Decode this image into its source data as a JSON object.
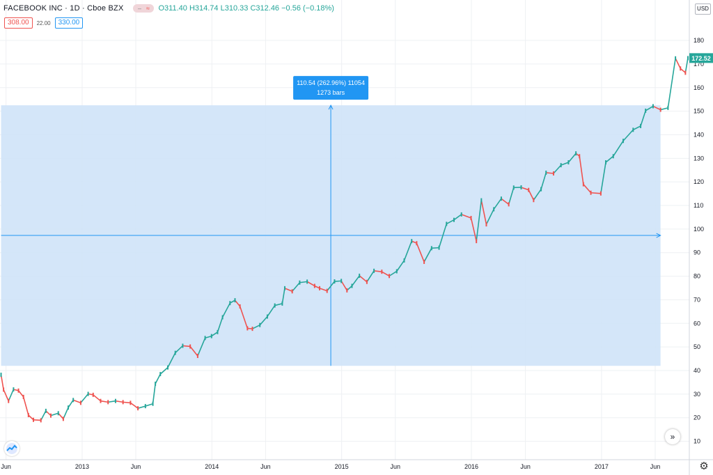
{
  "legend": {
    "symbol_line": "FACEBOOK INC · 1D · Cboe BZX",
    "open_label": "O",
    "open": "311.40",
    "high_label": "H",
    "high": "314.74",
    "low_label": "L",
    "low": "310.33",
    "close_label": "C",
    "close": "312.46",
    "change": "−0.56 (−0.18%)"
  },
  "quote": {
    "bid": "308.00",
    "spread": "22.00",
    "ask": "330.00"
  },
  "price_scale": {
    "currency": "USD",
    "last_price": "172.52"
  },
  "icons": {
    "logo": "tradingview-logo-icon",
    "scroll": "scroll-to-realtime-icon",
    "settings": "gear-icon"
  },
  "colors": {
    "up": "#26a69a",
    "down": "#ef5350",
    "range": "#2196f3",
    "range_fill": "#cfe3f8",
    "last_price": "#26a69a"
  },
  "measure": {
    "line1": "110.54 (262.96%) 11054",
    "line2": "1273 bars"
  },
  "chart_data": {
    "type": "line",
    "x_ticks": [
      "Jun",
      "2013",
      "Jun",
      "2014",
      "Jun",
      "2015",
      "Jun",
      "2016",
      "Jun",
      "2017",
      "Jun"
    ],
    "x_tick_dates": [
      "2012-06-01",
      "2013-01-01",
      "2013-06-01",
      "2014-01-01",
      "2014-06-01",
      "2015-01-01",
      "2015-06-01",
      "2016-01-01",
      "2016-06-01",
      "2017-01-01",
      "2017-06-01"
    ],
    "y_ticks": [
      10,
      20,
      30,
      40,
      50,
      60,
      70,
      80,
      90,
      100,
      110,
      120,
      130,
      140,
      150,
      160,
      170,
      180
    ],
    "ylim": [
      5,
      183
    ],
    "xlim": [
      "2012-05-15",
      "2017-09-05"
    ],
    "grid": true,
    "series": [
      {
        "values": [
          [
            "2012-05-18",
            38.2
          ],
          [
            "2012-05-25",
            31.9
          ],
          [
            "2012-06-08",
            27.1
          ],
          [
            "2012-06-22",
            32.0
          ],
          [
            "2012-07-06",
            31.5
          ],
          [
            "2012-07-20",
            28.8
          ],
          [
            "2012-08-03",
            21.1
          ],
          [
            "2012-08-17",
            19.1
          ],
          [
            "2012-09-07",
            18.9
          ],
          [
            "2012-09-21",
            22.9
          ],
          [
            "2012-10-05",
            20.9
          ],
          [
            "2012-10-26",
            21.9
          ],
          [
            "2012-11-09",
            19.5
          ],
          [
            "2012-11-23",
            24.3
          ],
          [
            "2012-12-07",
            27.5
          ],
          [
            "2012-12-28",
            26.3
          ],
          [
            "2013-01-18",
            30.1
          ],
          [
            "2013-02-01",
            29.7
          ],
          [
            "2013-02-22",
            27.1
          ],
          [
            "2013-03-15",
            26.6
          ],
          [
            "2013-04-05",
            27.1
          ],
          [
            "2013-04-26",
            26.6
          ],
          [
            "2013-05-17",
            26.3
          ],
          [
            "2013-06-07",
            24.0
          ],
          [
            "2013-06-28",
            24.9
          ],
          [
            "2013-07-19",
            25.9
          ],
          [
            "2013-07-26",
            34.4
          ],
          [
            "2013-08-09",
            38.5
          ],
          [
            "2013-08-30",
            41.3
          ],
          [
            "2013-09-20",
            47.5
          ],
          [
            "2013-10-11",
            50.5
          ],
          [
            "2013-11-01",
            50.2
          ],
          [
            "2013-11-22",
            46.2
          ],
          [
            "2013-12-13",
            53.8
          ],
          [
            "2013-12-31",
            54.6
          ],
          [
            "2014-01-17",
            56.3
          ],
          [
            "2014-01-31",
            62.6
          ],
          [
            "2014-02-21",
            68.6
          ],
          [
            "2014-03-07",
            69.8
          ],
          [
            "2014-03-21",
            67.2
          ],
          [
            "2014-04-11",
            57.9
          ],
          [
            "2014-04-25",
            57.7
          ],
          [
            "2014-05-16",
            59.3
          ],
          [
            "2014-06-06",
            62.9
          ],
          [
            "2014-06-27",
            67.6
          ],
          [
            "2014-07-18",
            68.4
          ],
          [
            "2014-07-25",
            74.9
          ],
          [
            "2014-08-15",
            73.6
          ],
          [
            "2014-09-05",
            77.3
          ],
          [
            "2014-09-26",
            77.7
          ],
          [
            "2014-10-17",
            75.9
          ],
          [
            "2014-10-31",
            74.9
          ],
          [
            "2014-11-21",
            73.8
          ],
          [
            "2014-12-12",
            77.8
          ],
          [
            "2014-12-31",
            78.0
          ],
          [
            "2015-01-16",
            74.0
          ],
          [
            "2015-01-30",
            75.9
          ],
          [
            "2015-02-20",
            80.2
          ],
          [
            "2015-03-13",
            77.6
          ],
          [
            "2015-04-02",
            82.3
          ],
          [
            "2015-04-24",
            81.9
          ],
          [
            "2015-05-15",
            80.1
          ],
          [
            "2015-06-05",
            82.1
          ],
          [
            "2015-06-26",
            86.7
          ],
          [
            "2015-07-17",
            94.9
          ],
          [
            "2015-07-31",
            94.0
          ],
          [
            "2015-08-21",
            86.1
          ],
          [
            "2015-09-11",
            91.9
          ],
          [
            "2015-10-02",
            92.1
          ],
          [
            "2015-10-23",
            102.2
          ],
          [
            "2015-11-13",
            103.9
          ],
          [
            "2015-12-04",
            106.2
          ],
          [
            "2015-12-31",
            104.7
          ],
          [
            "2016-01-15",
            94.9
          ],
          [
            "2016-01-29",
            112.2
          ],
          [
            "2016-02-12",
            102.0
          ],
          [
            "2016-03-04",
            108.4
          ],
          [
            "2016-03-25",
            112.9
          ],
          [
            "2016-04-15",
            110.5
          ],
          [
            "2016-04-29",
            117.6
          ],
          [
            "2016-05-20",
            117.7
          ],
          [
            "2016-06-10",
            116.6
          ],
          [
            "2016-06-24",
            112.3
          ],
          [
            "2016-07-15",
            116.9
          ],
          [
            "2016-07-29",
            123.9
          ],
          [
            "2016-08-19",
            123.6
          ],
          [
            "2016-09-09",
            127.1
          ],
          [
            "2016-09-30",
            128.3
          ],
          [
            "2016-10-21",
            132.1
          ],
          [
            "2016-10-31",
            130.9
          ],
          [
            "2016-11-11",
            119.0
          ],
          [
            "2016-12-02",
            115.4
          ],
          [
            "2016-12-30",
            115.1
          ],
          [
            "2017-01-13",
            128.3
          ],
          [
            "2017-02-03",
            130.9
          ],
          [
            "2017-03-03",
            137.4
          ],
          [
            "2017-03-31",
            142.1
          ],
          [
            "2017-04-21",
            143.7
          ],
          [
            "2017-05-05",
            150.2
          ],
          [
            "2017-05-26",
            152.1
          ],
          [
            "2017-06-16",
            150.6
          ],
          [
            "2017-07-07",
            151.4
          ],
          [
            "2017-07-28",
            172.4
          ],
          [
            "2017-08-11",
            168.1
          ],
          [
            "2017-08-25",
            166.3
          ],
          [
            "2017-09-01",
            172.5
          ]
        ]
      }
    ],
    "range_measure": {
      "from_date": "2012-05-18",
      "to_date": "2017-06-16",
      "from_price": 42.0,
      "to_price": 152.5,
      "mid_price": 97.3
    }
  }
}
